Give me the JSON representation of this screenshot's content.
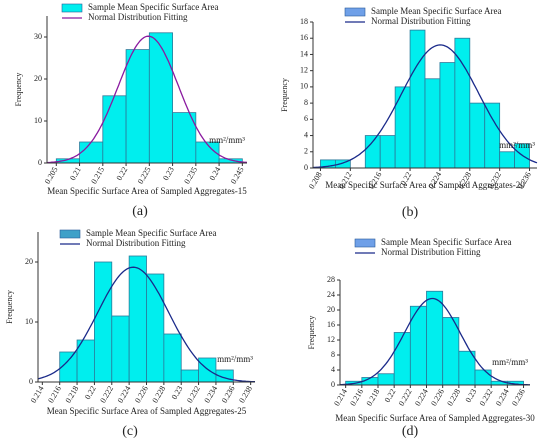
{
  "chart_data": [
    {
      "type": "histogram",
      "panel_label": "(a)",
      "xlabel": "Mean Specific Surface Area of Sampled Aggregates-15",
      "ylabel": "Frequency",
      "unit": "mm²/mm³",
      "bins": [
        0.205,
        0.21,
        0.215,
        0.22,
        0.225,
        0.23,
        0.235,
        0.24,
        0.245
      ],
      "series": [
        {
          "name": "Sample Mean Specific Surface Area",
          "color": "#00eeee",
          "values": [
            1,
            5,
            16,
            27,
            31,
            12,
            5,
            1
          ]
        }
      ],
      "fit": {
        "name": "Normal Distribution Fitting",
        "color": "#8a1aa0"
      },
      "xlim": [
        0.203,
        0.246
      ],
      "xticks": [
        0.205,
        0.21,
        0.215,
        0.22,
        0.225,
        0.23,
        0.235,
        0.24,
        0.245
      ],
      "ylim": [
        0,
        35
      ],
      "yticks": [
        0,
        10,
        20,
        30
      ]
    },
    {
      "type": "histogram",
      "panel_label": "(b)",
      "xlabel": "Mean Specific Surface Area of Sampled Aggregates-20",
      "ylabel": "Frequency",
      "unit": "mm²/mm³",
      "bins": [
        0.208,
        0.21,
        0.212,
        0.214,
        0.216,
        0.218,
        0.22,
        0.222,
        0.224,
        0.226,
        0.228,
        0.23,
        0.232,
        0.234,
        0.236
      ],
      "series": [
        {
          "name": "Sample Mean Specific Surface Area",
          "color": "#00eeee",
          "legend_color": "#6fa0e8",
          "values": [
            1,
            1,
            0,
            4,
            4,
            10,
            17,
            11,
            13,
            16,
            8,
            8,
            2,
            3
          ]
        }
      ],
      "fit": {
        "name": "Normal Distribution Fitting",
        "color": "#1a2a8a"
      },
      "xlim": [
        0.207,
        0.237
      ],
      "xticks": [
        0.208,
        0.212,
        0.216,
        0.22,
        0.224,
        0.228,
        0.232,
        0.236
      ],
      "ylim": [
        0,
        18
      ],
      "yticks": [
        0,
        2,
        4,
        6,
        8,
        10,
        12,
        14,
        16,
        18
      ]
    },
    {
      "type": "histogram",
      "panel_label": "(c)",
      "xlabel": "Mean Specific Surface Area of Sampled Aggregates-25",
      "ylabel": "Frequency",
      "unit": "mm²/mm³",
      "bins": [
        0.214,
        0.216,
        0.218,
        0.22,
        0.222,
        0.224,
        0.226,
        0.228,
        0.23,
        0.232,
        0.234,
        0.236,
        0.238
      ],
      "series": [
        {
          "name": "Sample Mean Specific Surface Area",
          "color": "#00eeee",
          "legend_color": "#3fa0c8",
          "values": [
            0,
            5,
            7,
            20,
            11,
            21,
            18,
            8,
            2,
            4,
            2,
            0
          ]
        }
      ],
      "fit": {
        "name": "Normal Distribution Fitting",
        "color": "#1a2a8a"
      },
      "xlim": [
        0.2135,
        0.2385
      ],
      "xticks": [
        0.214,
        0.216,
        0.218,
        0.22,
        0.222,
        0.224,
        0.226,
        0.228,
        0.23,
        0.232,
        0.234,
        0.236,
        0.238
      ],
      "ylim": [
        0,
        25
      ],
      "yticks": [
        0,
        10,
        20
      ]
    },
    {
      "type": "histogram",
      "panel_label": "(d)",
      "xlabel": "Mean Specific Surface Area of Sampled Aggregates-30",
      "ylabel": "Frequency",
      "unit": "mm²/mm³",
      "bins": [
        0.214,
        0.216,
        0.218,
        0.22,
        0.222,
        0.224,
        0.226,
        0.228,
        0.23,
        0.232,
        0.234,
        0.236
      ],
      "series": [
        {
          "name": "Sample Mean Specific Surface Area",
          "color": "#00eeee",
          "legend_color": "#6fa0e8",
          "values": [
            1,
            2,
            3,
            14,
            21,
            25,
            18,
            9,
            4,
            1,
            1
          ]
        }
      ],
      "fit": {
        "name": "Normal Distribution Fitting",
        "color": "#1a2a8a"
      },
      "xlim": [
        0.2133,
        0.2368
      ],
      "xticks": [
        0.214,
        0.216,
        0.218,
        0.22,
        0.222,
        0.224,
        0.226,
        0.228,
        0.23,
        0.232,
        0.234,
        0.236
      ],
      "ylim": [
        0,
        28
      ],
      "yticks": [
        0,
        4,
        8,
        12,
        16,
        20,
        24,
        28
      ]
    }
  ]
}
